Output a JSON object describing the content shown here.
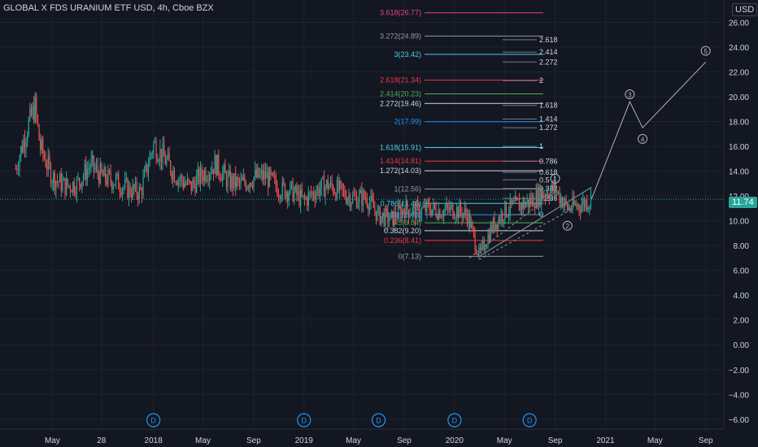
{
  "header": {
    "symbol_title": "GLOBAL X FDS URANIUM ETF USD, 4h, Cboe BZX",
    "currency": "USD",
    "last_price": "11.74"
  },
  "colors": {
    "background": "#131722",
    "grid": "#1e222d",
    "candle_up": "#26a69a",
    "candle_down": "#ef5350",
    "text": "#d1d4dc",
    "last_price": "#26a69a"
  },
  "chart_data": {
    "type": "candlestick",
    "title": "GLOBAL X FDS URANIUM ETF USD, 4h, Cboe BZX",
    "y_axis": {
      "position": "right",
      "range": [
        -6.8,
        27.8
      ],
      "ticks": [
        "26.00",
        "24.00",
        "22.00",
        "20.00",
        "18.00",
        "16.00",
        "14.00",
        "12.00",
        "10.00",
        "8.00",
        "6.00",
        "4.00",
        "2.00",
        "0.00",
        "−2.00",
        "−4.00",
        "−6.00"
      ]
    },
    "x_axis": {
      "ticks": [
        {
          "label": "May",
          "date": "2017-05"
        },
        {
          "label": "28",
          "date": "2017-08-28"
        },
        {
          "label": "2018",
          "date": "2018-01"
        },
        {
          "label": "May",
          "date": "2018-05"
        },
        {
          "label": "Sep",
          "date": "2018-09"
        },
        {
          "label": "2019",
          "date": "2019-01"
        },
        {
          "label": "May",
          "date": "2019-05"
        },
        {
          "label": "Sep",
          "date": "2019-09"
        },
        {
          "label": "2020",
          "date": "2020-01"
        },
        {
          "label": "May",
          "date": "2020-05"
        },
        {
          "label": "Sep",
          "date": "2020-09"
        },
        {
          "label": "2021",
          "date": "2021-01"
        },
        {
          "label": "May",
          "date": "2021-05"
        },
        {
          "label": "Sep",
          "date": "2021-09"
        }
      ]
    },
    "grid": true,
    "last_price": 11.74,
    "price_path": [
      {
        "date": "2017-02",
        "value": 14.2
      },
      {
        "date": "2017-03",
        "value": 17.5
      },
      {
        "date": "2017-03-20",
        "value": 19.2
      },
      {
        "date": "2017-04",
        "value": 16.0
      },
      {
        "date": "2017-05",
        "value": 13.5
      },
      {
        "date": "2017-06",
        "value": 12.8
      },
      {
        "date": "2017-07",
        "value": 13.0
      },
      {
        "date": "2017-08",
        "value": 14.5
      },
      {
        "date": "2017-09",
        "value": 13.5
      },
      {
        "date": "2017-10",
        "value": 13.2
      },
      {
        "date": "2017-11",
        "value": 12.5
      },
      {
        "date": "2017-12",
        "value": 12.3
      },
      {
        "date": "2018-01",
        "value": 16.2
      },
      {
        "date": "2018-02",
        "value": 14.8
      },
      {
        "date": "2018-03",
        "value": 13.5
      },
      {
        "date": "2018-04",
        "value": 12.7
      },
      {
        "date": "2018-05",
        "value": 13.8
      },
      {
        "date": "2018-06",
        "value": 14.6
      },
      {
        "date": "2018-07",
        "value": 13.2
      },
      {
        "date": "2018-08",
        "value": 12.9
      },
      {
        "date": "2018-09",
        "value": 13.5
      },
      {
        "date": "2018-10",
        "value": 13.6
      },
      {
        "date": "2018-11",
        "value": 12.6
      },
      {
        "date": "2018-12",
        "value": 12.4
      },
      {
        "date": "2019-01",
        "value": 11.6
      },
      {
        "date": "2019-02",
        "value": 12.5
      },
      {
        "date": "2019-03",
        "value": 12.9
      },
      {
        "date": "2019-04",
        "value": 12.3
      },
      {
        "date": "2019-05",
        "value": 11.8
      },
      {
        "date": "2019-06",
        "value": 11.9
      },
      {
        "date": "2019-07",
        "value": 10.4
      },
      {
        "date": "2019-08",
        "value": 10.1
      },
      {
        "date": "2019-09",
        "value": 11.0
      },
      {
        "date": "2019-10",
        "value": 10.7
      },
      {
        "date": "2019-11",
        "value": 11.0
      },
      {
        "date": "2019-12",
        "value": 10.8
      },
      {
        "date": "2020-01",
        "value": 10.9
      },
      {
        "date": "2020-02",
        "value": 10.5
      },
      {
        "date": "2020-03",
        "value": 7.13
      },
      {
        "date": "2020-04",
        "value": 9.5
      },
      {
        "date": "2020-05",
        "value": 10.8
      },
      {
        "date": "2020-06",
        "value": 11.2
      },
      {
        "date": "2020-07",
        "value": 11.5
      },
      {
        "date": "2020-08",
        "value": 12.2
      },
      {
        "date": "2020-09",
        "value": 12.56
      },
      {
        "date": "2020-10",
        "value": 11.0
      },
      {
        "date": "2020-11",
        "value": 11.3
      },
      {
        "date": "2020-11-28",
        "value": 11.74
      }
    ],
    "projection_path": [
      {
        "date": "2020-11-28",
        "value": 11.74
      },
      {
        "date": "2021-03",
        "value": 19.6
      },
      {
        "date": "2021-04",
        "value": 17.5
      },
      {
        "date": "2021-09",
        "value": 22.8
      }
    ],
    "wave_labels": [
      {
        "label": "1",
        "date": "2020-09",
        "value": 13.4
      },
      {
        "label": "2",
        "date": "2020-10",
        "value": 9.6
      },
      {
        "label": "3",
        "date": "2021-03",
        "value": 20.2
      },
      {
        "label": "4",
        "date": "2021-04",
        "value": 16.6
      },
      {
        "label": "5",
        "date": "2021-09",
        "value": 23.7
      }
    ],
    "fib_extension_levels": [
      {
        "label": "3.618(26.77)",
        "value": 26.77,
        "color": "#ec407a"
      },
      {
        "label": "3.272(24.89)",
        "value": 24.89,
        "color": "#9598a1"
      },
      {
        "label": "3(23.42)",
        "value": 23.42,
        "color": "#4dd0e1"
      },
      {
        "label": "2.618(21.34)",
        "value": 21.34,
        "color": "#f23645"
      },
      {
        "label": "2.414(20.23)",
        "value": 20.23,
        "color": "#4caf50"
      },
      {
        "label": "2.272(19.46)",
        "value": 19.46,
        "color": "#d1d4dc"
      },
      {
        "label": "2(17.99)",
        "value": 17.99,
        "color": "#2196f3"
      },
      {
        "label": "1.618(15.91)",
        "value": 15.91,
        "color": "#4dd0e1"
      },
      {
        "label": "1.414(14.81)",
        "value": 14.81,
        "color": "#f23645"
      },
      {
        "label": "1.272(14.03)",
        "value": 14.03,
        "color": "#d1d4dc"
      },
      {
        "label": "1(12.56)",
        "value": 12.56,
        "color": "#9598a1"
      },
      {
        "label": "0.786(11.40)",
        "value": 11.4,
        "color": "#4dd0e1"
      },
      {
        "label": "0.618(10.48)",
        "value": 10.48,
        "color": "#2196f3"
      },
      {
        "label": "0.5(9.84)",
        "value": 9.84,
        "color": "#4caf50"
      },
      {
        "label": "0.382(9.20)",
        "value": 9.2,
        "color": "#d1d4dc"
      },
      {
        "label": "0.236(8.41)",
        "value": 8.41,
        "color": "#f23645"
      },
      {
        "label": "0(7.13)",
        "value": 7.13,
        "color": "#9598a1"
      }
    ],
    "fib_retracement_levels": [
      {
        "label": "2.618",
        "value": 24.6
      },
      {
        "label": "2.414",
        "value": 23.6
      },
      {
        "label": "2.272",
        "value": 22.8
      },
      {
        "label": "2",
        "value": 21.3
      },
      {
        "label": "1.618",
        "value": 19.3
      },
      {
        "label": "1.414",
        "value": 18.2
      },
      {
        "label": "1.272",
        "value": 17.5
      },
      {
        "label": "1",
        "value": 16.0
      },
      {
        "label": "0.786",
        "value": 14.8
      },
      {
        "label": "0.618",
        "value": 13.9
      },
      {
        "label": "0.5",
        "value": 13.3
      },
      {
        "label": "0.382",
        "value": 12.6
      },
      {
        "label": "0.236",
        "value": 11.8
      },
      {
        "label": "0",
        "value": 10.5
      }
    ],
    "dividend_markers": [
      {
        "label": "D",
        "date": "2018-01"
      },
      {
        "label": "D",
        "date": "2019-01"
      },
      {
        "label": "D",
        "date": "2019-07"
      },
      {
        "label": "D",
        "date": "2020-01"
      },
      {
        "label": "D",
        "date": "2020-07"
      }
    ]
  }
}
